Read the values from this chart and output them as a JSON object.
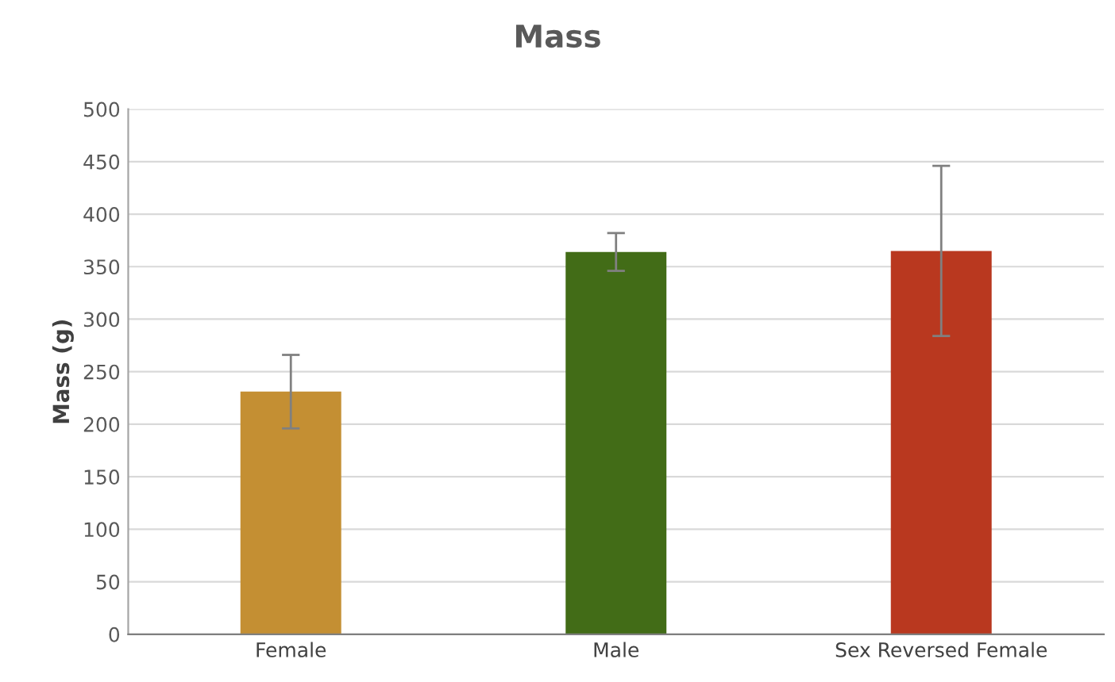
{
  "chart_data": {
    "type": "bar",
    "title": "Mass",
    "ylabel": "Mass (g)",
    "categories": [
      "Female",
      "Male",
      "Sex Reversed Female"
    ],
    "values": [
      231,
      364,
      365
    ],
    "errors": [
      35,
      18,
      81
    ],
    "colors": [
      "#c48f33",
      "#426c17",
      "#b9381f"
    ],
    "ylim": [
      0,
      500
    ],
    "yticks": [
      0,
      50,
      100,
      150,
      200,
      250,
      300,
      350,
      400,
      450,
      500
    ],
    "grid": "y"
  }
}
